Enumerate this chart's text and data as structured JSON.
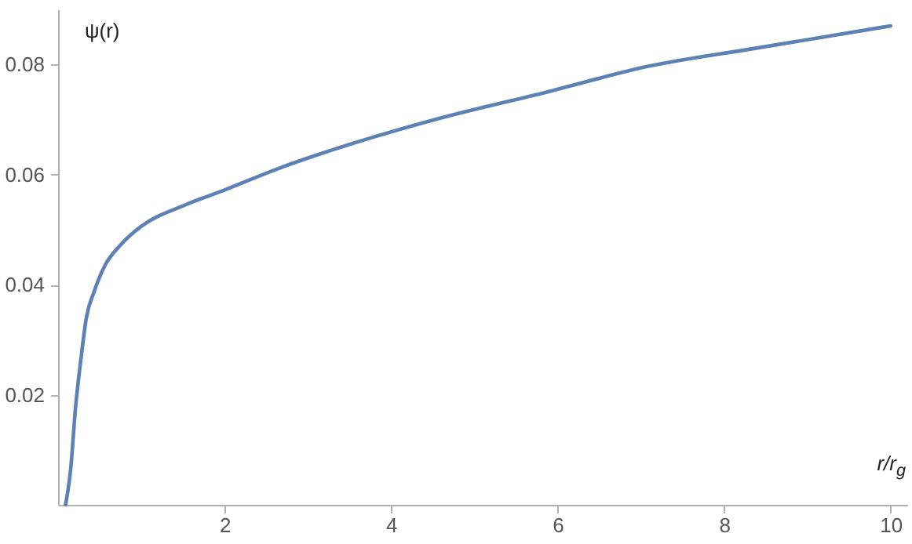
{
  "chart_data": {
    "type": "line",
    "xlabel": "r/r$_{g}$",
    "ylabel": "ψ(r)",
    "x": [
      0.09,
      0.15,
      0.21,
      0.28,
      0.34,
      0.43,
      0.56,
      0.75,
      1.0,
      1.5,
      2.0,
      2.7,
      3.08,
      4.58,
      5.85,
      7.1,
      8.36,
      10.0
    ],
    "series": [
      {
        "color": "#5e81b5",
        "values": [
          0.0,
          0.0063,
          0.0177,
          0.0272,
          0.034,
          0.0386,
          0.0434,
          0.0472,
          0.0506,
          0.0543,
          0.0572,
          0.0614,
          0.0634,
          0.0702,
          0.0749,
          0.0797,
          0.0829,
          0.087
        ]
      }
    ],
    "xlim": [
      0,
      10.2
    ],
    "ylim": [
      0,
      0.09
    ],
    "xticks": [
      2,
      4,
      6,
      8,
      10
    ],
    "yticks": [
      0.02,
      0.04,
      0.06,
      0.08
    ],
    "grid": false
  }
}
